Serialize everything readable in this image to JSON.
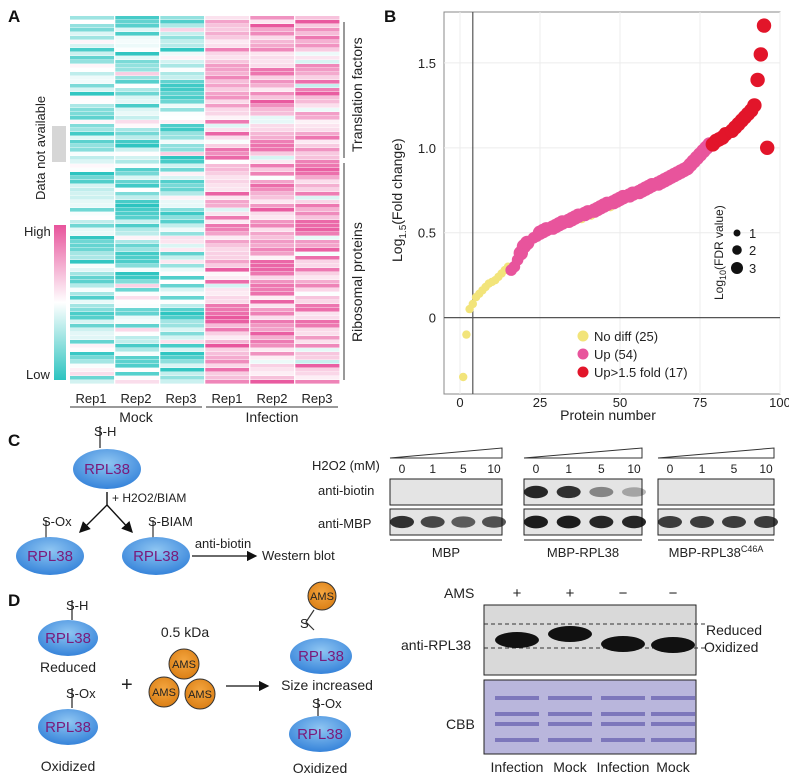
{
  "figure": {
    "panels": {
      "a": "A",
      "b": "B",
      "c": "C",
      "d": "D"
    }
  },
  "heatmap": {
    "columns": [
      "Rep1",
      "Rep2",
      "Rep3",
      "Rep1",
      "Rep2",
      "Rep3"
    ],
    "groups": [
      "Mock",
      "Infection"
    ],
    "row_groups": [
      "Translation factors",
      "Ribosomal proteins"
    ],
    "missing_label": "Data not available",
    "scale": {
      "high": "High",
      "low": "Low"
    },
    "colors": {
      "high": "#e8549c",
      "mid": "#ffffff",
      "low": "#2cc4c0"
    }
  },
  "chart_data": {
    "type": "scatter",
    "title": "",
    "xlabel": "Protein number",
    "ylabel_base": "Log",
    "ylabel_sub": "1.5",
    "ylabel_rest": "(Fold change)",
    "xlim": [
      -5,
      100
    ],
    "ylim": [
      -0.45,
      1.8
    ],
    "x_ticks": [
      0,
      25,
      50,
      75,
      100
    ],
    "y_ticks": [
      0,
      0.5,
      1.0,
      1.5
    ],
    "y_tick_labels": [
      "0",
      "0.5",
      "1.0",
      "1.5"
    ],
    "grid": true,
    "reference_x": 4,
    "reference_y": 0,
    "legend_position": "bottom-center",
    "legend": [
      {
        "label": "No diff (25)",
        "color": "#f2e47a"
      },
      {
        "label": "Up (54)",
        "color": "#e8549c"
      },
      {
        "label": "Up>1.5 fold (17)",
        "color": "#e2152a"
      }
    ],
    "size_legend": {
      "title_base": "Log",
      "title_sub": "10",
      "title_rest": "(FDR value)",
      "values": [
        "1",
        "2",
        "3"
      ]
    },
    "series": [
      {
        "name": "No diff",
        "color": "#f2e47a",
        "x": [
          1,
          2,
          3,
          4,
          5,
          6,
          7,
          8,
          9,
          10,
          11,
          12,
          13,
          14,
          15,
          22,
          28,
          33,
          38,
          41,
          47,
          52,
          55,
          61,
          84
        ],
        "y": [
          -0.35,
          -0.1,
          0.05,
          0.08,
          0.12,
          0.14,
          0.16,
          0.18,
          0.2,
          0.21,
          0.22,
          0.24,
          0.26,
          0.28,
          0.3,
          0.45,
          0.52,
          0.55,
          0.58,
          0.6,
          0.65,
          0.7,
          0.72,
          0.77,
          1.1
        ],
        "fdr": [
          1,
          1,
          1,
          1,
          1,
          1,
          1,
          1,
          1,
          1,
          1,
          1,
          1,
          1,
          1,
          1,
          1,
          1,
          1,
          1,
          1,
          1,
          1,
          1,
          1
        ]
      },
      {
        "name": "Up",
        "color": "#e8549c",
        "x": [
          16,
          17,
          18,
          19,
          20,
          21,
          23,
          24,
          25,
          26,
          27,
          29,
          30,
          31,
          32,
          34,
          35,
          36,
          37,
          39,
          40,
          42,
          43,
          44,
          45,
          46,
          48,
          49,
          50,
          51,
          53,
          54,
          56,
          57,
          58,
          59,
          60,
          62,
          63,
          64,
          65,
          66,
          67,
          68,
          69,
          70,
          71,
          72,
          73,
          74,
          75,
          76,
          77,
          78
        ],
        "y": [
          0.28,
          0.3,
          0.34,
          0.38,
          0.42,
          0.44,
          0.47,
          0.48,
          0.5,
          0.51,
          0.52,
          0.53,
          0.54,
          0.55,
          0.56,
          0.57,
          0.58,
          0.59,
          0.6,
          0.61,
          0.62,
          0.63,
          0.64,
          0.65,
          0.66,
          0.67,
          0.68,
          0.69,
          0.7,
          0.71,
          0.72,
          0.73,
          0.74,
          0.75,
          0.76,
          0.77,
          0.78,
          0.79,
          0.8,
          0.81,
          0.82,
          0.83,
          0.84,
          0.85,
          0.86,
          0.87,
          0.88,
          0.9,
          0.92,
          0.94,
          0.96,
          0.98,
          1.0,
          1.02
        ],
        "fdr": [
          2,
          2,
          2,
          3,
          3,
          3,
          2,
          2,
          3,
          3,
          3,
          3,
          3,
          3,
          3,
          3,
          3,
          3,
          3,
          3,
          3,
          3,
          3,
          3,
          3,
          3,
          3,
          3,
          3,
          3,
          3,
          3,
          3,
          3,
          3,
          3,
          3,
          3,
          3,
          3,
          3,
          3,
          3,
          3,
          3,
          3,
          3,
          3,
          3,
          3,
          3,
          3,
          3,
          3
        ]
      },
      {
        "name": "Up>1.5 fold",
        "color": "#e2152a",
        "x": [
          79,
          80,
          81,
          82,
          83,
          85,
          86,
          87,
          88,
          89,
          90,
          91,
          92,
          93,
          94,
          95,
          96
        ],
        "y": [
          1.02,
          1.04,
          1.05,
          1.06,
          1.08,
          1.1,
          1.12,
          1.14,
          1.16,
          1.18,
          1.2,
          1.22,
          1.25,
          1.4,
          1.55,
          1.72,
          1.0
        ],
        "fdr": [
          3,
          3,
          3,
          3,
          3,
          3,
          3,
          3,
          3,
          3,
          3,
          3,
          3,
          3,
          3,
          3,
          3
        ]
      }
    ]
  },
  "panel_c": {
    "protein": "RPL38",
    "thiol": "S-H",
    "reagent": "+ H2O2/BIAM",
    "ox_label": "S-Ox",
    "biam_label": "S-BIAM",
    "arrow_label": "anti-biotin",
    "result": "Western blot",
    "h2o2_label": "H2O2 (mM)",
    "doses": [
      "0",
      "1",
      "5",
      "10"
    ],
    "rows": [
      "anti-biotin",
      "anti-MBP"
    ],
    "blots": [
      "MBP",
      "MBP-RPL38",
      "MBP-RPL38"
    ],
    "mutation": "C46A",
    "biotin_signal": [
      [
        0,
        0,
        0,
        0
      ],
      [
        0.9,
        0.85,
        0.45,
        0.3
      ],
      [
        0,
        0,
        0,
        0
      ]
    ],
    "mbp_signal": [
      [
        0.85,
        0.75,
        0.65,
        0.7
      ],
      [
        0.95,
        0.95,
        0.9,
        0.9
      ],
      [
        0.8,
        0.8,
        0.8,
        0.8
      ]
    ]
  },
  "panel_d": {
    "protein": "RPL38",
    "reduced_group": "S-H",
    "ox_group": "S-Ox",
    "reduced": "Reduced",
    "oxidized": "Oxidized",
    "plus": "+",
    "mass": "0.5 kDa",
    "reagent": "AMS",
    "size_increased": "Size increased",
    "blot_title": "AMS",
    "ams_marks": [
      "+",
      "+",
      "−",
      "−"
    ],
    "antibody": "anti-RPL38",
    "band_reduced": "Reduced",
    "band_oxidized": "Oxidized",
    "stain": "CBB",
    "lanes": [
      "Infection",
      "Mock",
      "Infection",
      "Mock"
    ]
  }
}
